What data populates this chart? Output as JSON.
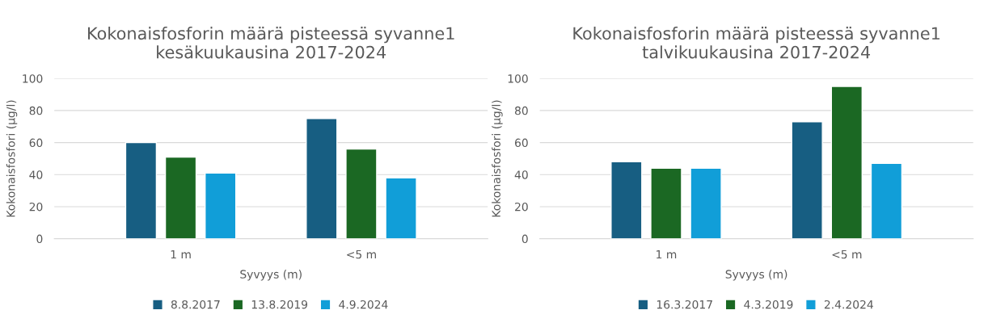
{
  "chart_data": [
    {
      "type": "bar",
      "title": "Kokonaisfosforin määrä pisteessä syvanne1\nkesäkuukausina 2017-2024",
      "xlabel": "Syvyys (m)",
      "ylabel": "Kokonaisfosfori (µg/l)",
      "categories": [
        "1 m",
        "<5 m"
      ],
      "series": [
        {
          "name": "8.8.2017",
          "color": "#175e82",
          "values": [
            60,
            75
          ]
        },
        {
          "name": "13.8.2019",
          "color": "#1b6823",
          "values": [
            51,
            56
          ]
        },
        {
          "name": "4.9.2024",
          "color": "#119ed8",
          "values": [
            41,
            38
          ]
        }
      ],
      "ylim": [
        0,
        100
      ],
      "yticks": [
        0,
        20,
        40,
        60,
        80,
        100
      ],
      "grid": "y",
      "legend": "bottom"
    },
    {
      "type": "bar",
      "title": "Kokonaisfosforin määrä pisteessä syvanne1\ntalvikuukausina 2017-2024",
      "xlabel": "Syvyys (m)",
      "ylabel": "Kokonaisfosfori (µg/l)",
      "categories": [
        "1 m",
        "<5 m"
      ],
      "series": [
        {
          "name": "16.3.2017",
          "color": "#175e82",
          "values": [
            48,
            73
          ]
        },
        {
          "name": "4.3.2019",
          "color": "#1b6823",
          "values": [
            44,
            95
          ]
        },
        {
          "name": "2.4.2024",
          "color": "#119ed8",
          "values": [
            44,
            47
          ]
        }
      ],
      "ylim": [
        0,
        100
      ],
      "yticks": [
        0,
        20,
        40,
        60,
        80,
        100
      ],
      "grid": "y",
      "legend": "bottom"
    }
  ]
}
